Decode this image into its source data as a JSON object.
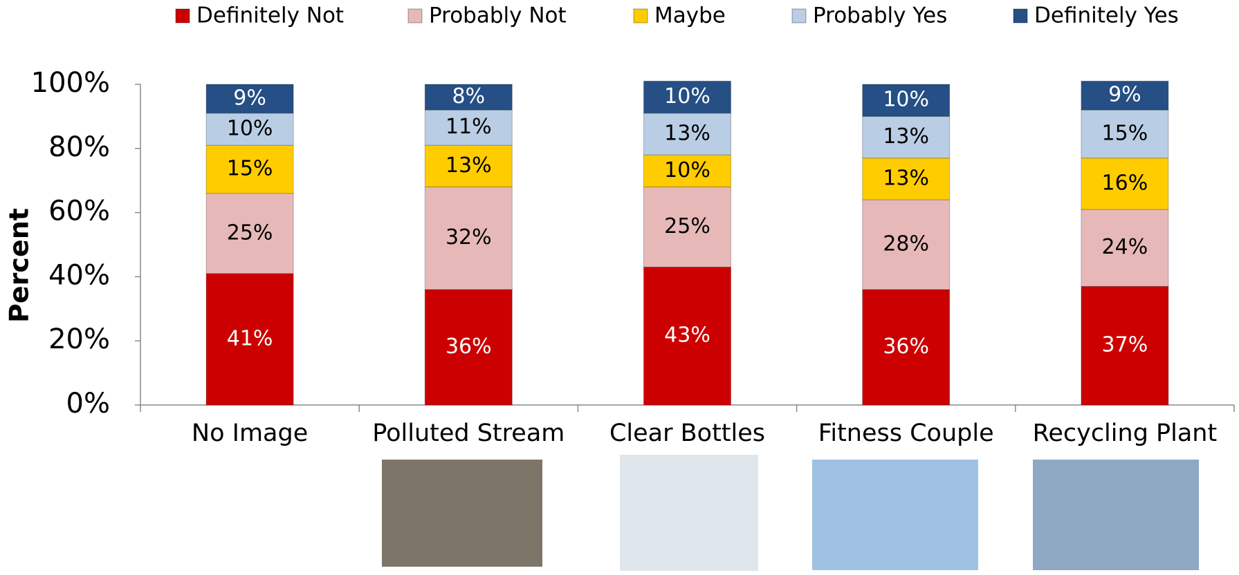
{
  "chart_data": {
    "type": "stacked_bar",
    "y_label": "Percent",
    "categories": [
      "No Image",
      "Polluted Stream",
      "Clear Bottles",
      "Fitness Couple",
      "Recycling Plant"
    ],
    "series": [
      {
        "name": "Definitely Not",
        "color": "#cc0000",
        "label_color": "#ffffff",
        "values": [
          41,
          36,
          43,
          36,
          37
        ],
        "value_labels": [
          "41%",
          "36%",
          "43%",
          "36%",
          "37%"
        ]
      },
      {
        "name": "Probably Not",
        "color": "#e6b9b8",
        "label_color": "#000000",
        "values": [
          25,
          32,
          25,
          28,
          24
        ],
        "value_labels": [
          "25%",
          "32%",
          "25%",
          "28%",
          "24%"
        ]
      },
      {
        "name": "Maybe",
        "color": "#ffcc00",
        "label_color": "#000000",
        "values": [
          15,
          13,
          10,
          13,
          16
        ],
        "value_labels": [
          "15%",
          "13%",
          "10%",
          "13%",
          "16%"
        ]
      },
      {
        "name": "Probably Yes",
        "color": "#b9cde5",
        "label_color": "#000000",
        "values": [
          10,
          11,
          13,
          13,
          15
        ],
        "value_labels": [
          "10%",
          "11%",
          "13%",
          "13%",
          "15%"
        ]
      },
      {
        "name": "Definitely Yes",
        "color": "#254f85",
        "label_color": "#ffffff",
        "values": [
          9,
          8,
          10,
          10,
          9
        ],
        "value_labels": [
          "9%",
          "8%",
          "10%",
          "10%",
          "9%"
        ]
      }
    ],
    "ylim": [
      0,
      100
    ],
    "yticks": [
      {
        "value": 0,
        "label": "0%"
      },
      {
        "value": 20,
        "label": "20%"
      },
      {
        "value": 40,
        "label": "40%"
      },
      {
        "value": 60,
        "label": "60%"
      },
      {
        "value": 80,
        "label": "80%"
      },
      {
        "value": 100,
        "label": "100%"
      }
    ],
    "grid": false,
    "legend": "top"
  }
}
